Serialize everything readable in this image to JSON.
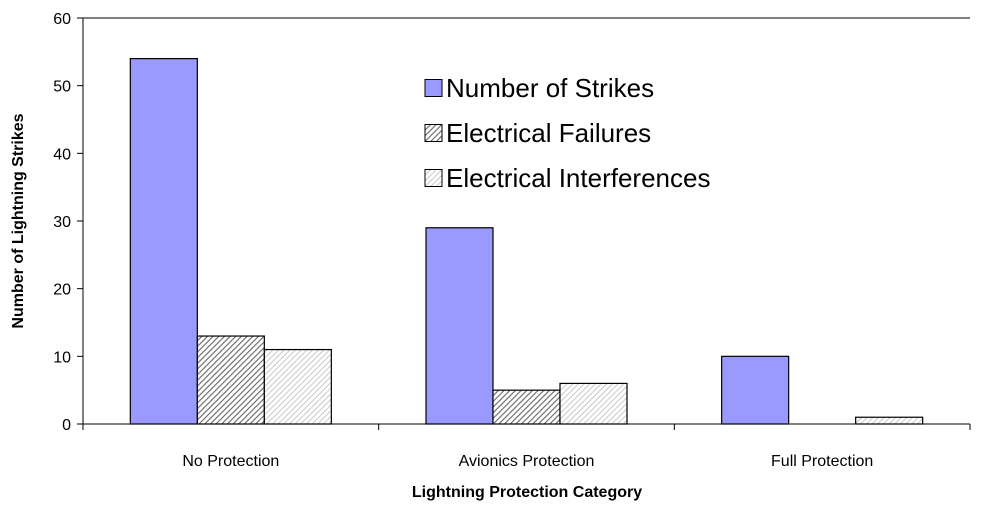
{
  "chart_data": {
    "type": "bar",
    "title": "",
    "xlabel": "Lightning Protection Category",
    "ylabel": "Number of Lightning Strikes",
    "categories": [
      "No Protection",
      "Avionics Protection",
      "Full Protection"
    ],
    "series": [
      {
        "name": "Number of Strikes",
        "values": [
          54,
          29,
          10
        ],
        "color": "#9999ff",
        "pattern": "solid"
      },
      {
        "name": "Electrical Failures",
        "values": [
          13,
          5,
          0
        ],
        "color": "#666666",
        "pattern": "dense-diagonal-hatch"
      },
      {
        "name": "Electrical Interferences",
        "values": [
          11,
          6,
          1
        ],
        "color": "#bbbbbb",
        "pattern": "light-diagonal-hatch"
      }
    ],
    "ylim": [
      0,
      60
    ],
    "yticks": [
      0,
      10,
      20,
      30,
      40,
      50,
      60
    ],
    "grid": false,
    "legend_position": "top-center"
  }
}
